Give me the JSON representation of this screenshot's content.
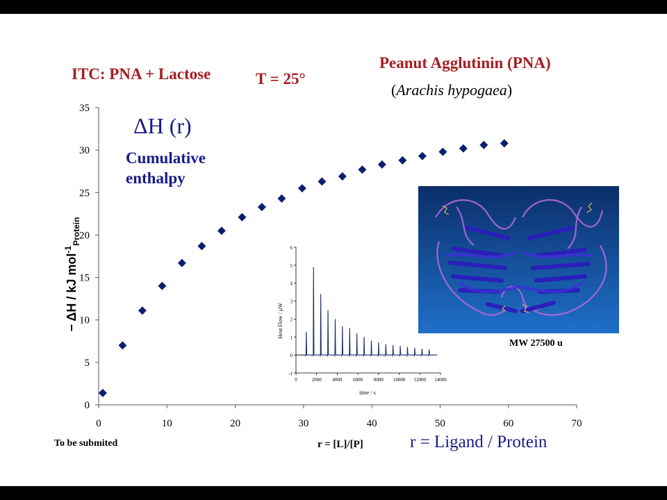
{
  "titles": {
    "itc": "ITC: PNA + Lactose",
    "temperature": "T = 25°",
    "protein_name": "Peanut Agglutinin (PNA)",
    "species_open": "(",
    "species_name": "Arachis hypogaea",
    "species_close": ")"
  },
  "annotations": {
    "dh_symbol": "ΔH (r)",
    "cumulative_line1": "Cumulative",
    "cumulative_line2": "enthalpy",
    "note": "To be submited",
    "mw": "MW 27500 u"
  },
  "axes": {
    "ylabel_main": "− ΔH / kJ mol",
    "ylabel_sup": "-1",
    "ylabel_sub": "Protein",
    "xlabel_short": "r = [L]/[P]",
    "xlabel_long": "r = Ligand / Protein"
  },
  "colors": {
    "title_red": "#a41e22",
    "annotation_blue": "#1a1a8c",
    "marker_navy": "#0b1f6e",
    "inset_line": "#1c2a6b"
  },
  "chart_data": [
    {
      "type": "scatter",
      "marker": "diamond",
      "xlim": [
        0,
        70
      ],
      "ylim": [
        0,
        35
      ],
      "xticks": [
        0,
        10,
        20,
        30,
        40,
        50,
        60,
        70
      ],
      "yticks": [
        0,
        5,
        10,
        15,
        20,
        25,
        30,
        35
      ],
      "grid": false,
      "x": [
        0.6,
        3.5,
        6.4,
        9.3,
        12.2,
        15.1,
        18.0,
        21.0,
        23.9,
        26.8,
        29.8,
        32.7,
        35.7,
        38.6,
        41.5,
        44.5,
        47.4,
        50.4,
        53.4,
        56.4,
        59.4
      ],
      "y": [
        1.4,
        7.0,
        11.1,
        14.0,
        16.7,
        18.7,
        20.5,
        22.1,
        23.3,
        24.3,
        25.5,
        26.3,
        26.9,
        27.7,
        28.3,
        28.8,
        29.3,
        29.8,
        30.2,
        30.6,
        30.8
      ]
    },
    {
      "type": "line",
      "ylabel": "Heat Flow / μW",
      "xlabel": "time / s",
      "xlim": [
        0,
        14000
      ],
      "ylim": [
        -1,
        6
      ],
      "xticks": [
        0,
        2000,
        4000,
        6000,
        8000,
        10000,
        12000,
        14000
      ],
      "yticks": [
        -1,
        0,
        1,
        2,
        3,
        4,
        5,
        6
      ],
      "injection_times": [
        1000,
        1700,
        2400,
        3100,
        3800,
        4500,
        5200,
        5900,
        6600,
        7300,
        8000,
        8700,
        9400,
        10100,
        10800,
        11500,
        12200,
        12900
      ],
      "peak_heights": [
        1.3,
        4.9,
        3.4,
        2.5,
        2.0,
        1.6,
        1.5,
        1.2,
        1.0,
        0.8,
        0.7,
        0.6,
        0.55,
        0.5,
        0.45,
        0.4,
        0.35,
        0.3
      ]
    }
  ]
}
